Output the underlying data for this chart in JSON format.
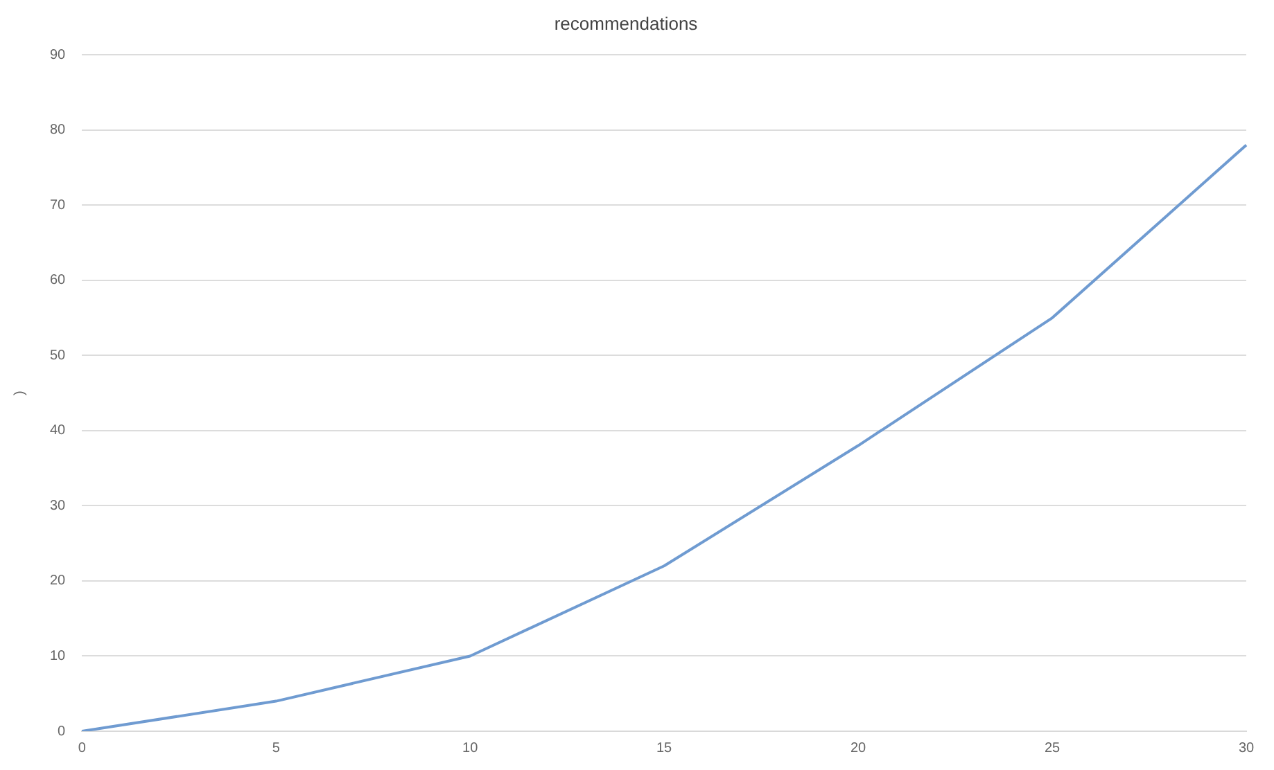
{
  "chart_data": {
    "type": "line",
    "title": "recommendations",
    "ylabel": ")",
    "categories": [
      "0",
      "5",
      "10",
      "15",
      "20",
      "25",
      "30"
    ],
    "series": [
      {
        "color": "#6f9bd1",
        "values": [
          0,
          4,
          10,
          22,
          38,
          55,
          78
        ]
      }
    ],
    "ylim": [
      0,
      90
    ],
    "yticks": [
      0,
      10,
      20,
      30,
      40,
      50,
      60,
      70,
      80,
      90
    ],
    "grid": "y",
    "legend": false,
    "marker": "none",
    "line_style": "solid"
  }
}
